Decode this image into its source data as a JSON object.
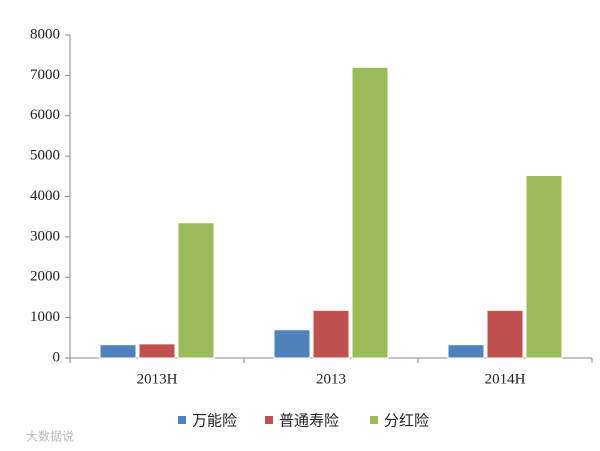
{
  "chart_data": {
    "type": "bar",
    "categories": [
      "2013H",
      "2013",
      "2014H"
    ],
    "series": [
      {
        "name": "万能险",
        "color": "#4f81bd",
        "values": [
          330,
          700,
          330
        ]
      },
      {
        "name": "普通寿险",
        "color": "#c0504d",
        "values": [
          350,
          1180,
          1180
        ]
      },
      {
        "name": "分红险",
        "color": "#9bbb59",
        "values": [
          3350,
          7200,
          4520
        ]
      }
    ],
    "ylim": [
      0,
      8000
    ],
    "yticks": [
      0,
      1000,
      2000,
      3000,
      4000,
      5000,
      6000,
      7000,
      8000
    ],
    "watermark": "大数据说"
  }
}
